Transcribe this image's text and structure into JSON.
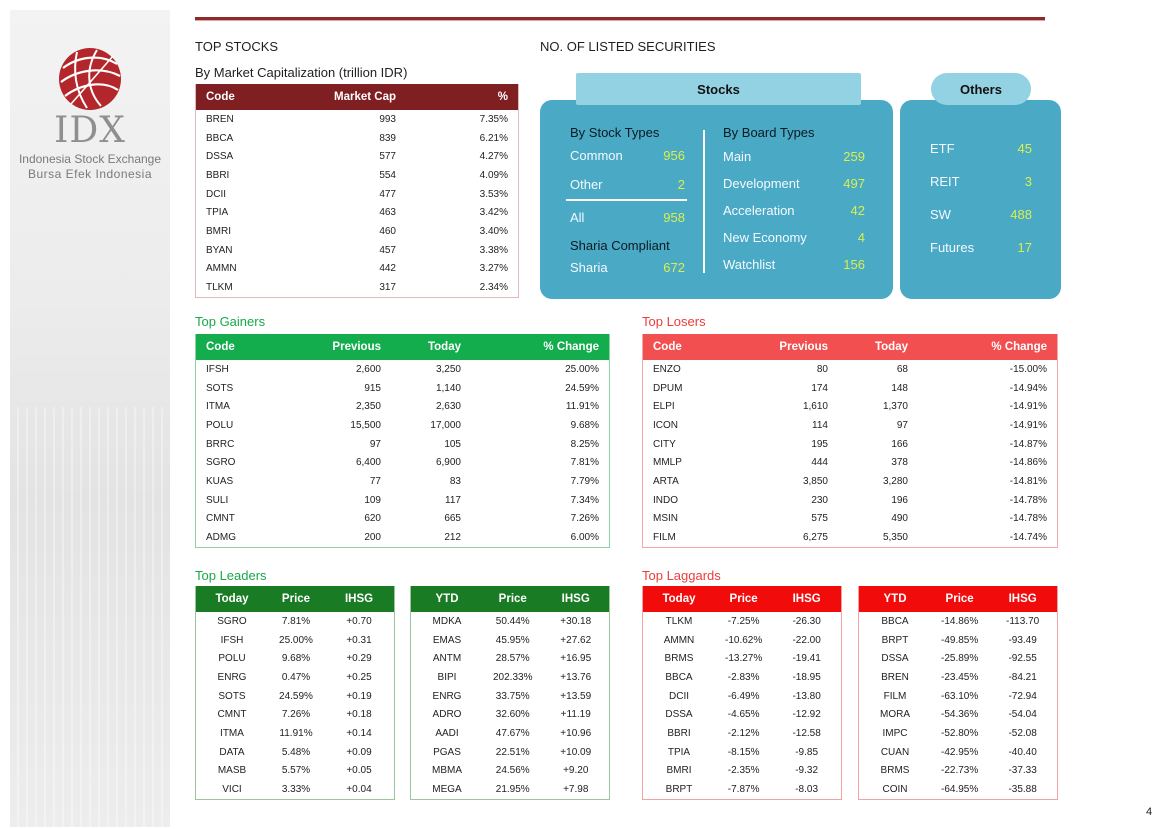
{
  "logo": {
    "brand": "IDX",
    "line1": "Indonesia Stock Exchange",
    "line2": "Bursa Efek Indonesia"
  },
  "top_stocks": {
    "title": "TOP STOCKS",
    "subtitle": "By Market Capitalization (trillion IDR)",
    "headers": [
      "Code",
      "Market Cap",
      "%"
    ],
    "rows": [
      [
        "BREN",
        "993",
        "7.35%"
      ],
      [
        "BBCA",
        "839",
        "6.21%"
      ],
      [
        "DSSA",
        "577",
        "4.27%"
      ],
      [
        "BBRI",
        "554",
        "4.09%"
      ],
      [
        "DCII",
        "477",
        "3.53%"
      ],
      [
        "TPIA",
        "463",
        "3.42%"
      ],
      [
        "BMRI",
        "460",
        "3.40%"
      ],
      [
        "BYAN",
        "457",
        "3.38%"
      ],
      [
        "AMMN",
        "442",
        "3.27%"
      ],
      [
        "TLKM",
        "317",
        "2.34%"
      ]
    ]
  },
  "listed": {
    "title": "NO. OF LISTED SECURITIES",
    "stocks_tab": "Stocks",
    "others_tab": "Others",
    "by_stock_types": "By Stock Types",
    "common_label": "Common",
    "common_value": "956",
    "other_label": "Other",
    "other_value": "2",
    "all_label": "All",
    "all_value": "958",
    "sharia_compliant": "Sharia Compliant",
    "sharia_label": "Sharia",
    "sharia_value": "672",
    "by_board_types": "By Board Types",
    "boards": [
      {
        "label": "Main",
        "value": "259"
      },
      {
        "label": "Development",
        "value": "497"
      },
      {
        "label": "Acceleration",
        "value": "42"
      },
      {
        "label": "New Economy",
        "value": "4"
      },
      {
        "label": "Watchlist",
        "value": "156"
      }
    ],
    "others": [
      {
        "label": "ETF",
        "value": "45"
      },
      {
        "label": "REIT",
        "value": "3"
      },
      {
        "label": "SW",
        "value": "488"
      },
      {
        "label": "Futures",
        "value": "17"
      }
    ]
  },
  "gainers": {
    "title": "Top Gainers",
    "headers": [
      "Code",
      "Previous",
      "Today",
      "% Change"
    ],
    "rows": [
      [
        "IFSH",
        "2,600",
        "3,250",
        "25.00%"
      ],
      [
        "SOTS",
        "915",
        "1,140",
        "24.59%"
      ],
      [
        "ITMA",
        "2,350",
        "2,630",
        "11.91%"
      ],
      [
        "POLU",
        "15,500",
        "17,000",
        "9.68%"
      ],
      [
        "BRRC",
        "97",
        "105",
        "8.25%"
      ],
      [
        "SGRO",
        "6,400",
        "6,900",
        "7.81%"
      ],
      [
        "KUAS",
        "77",
        "83",
        "7.79%"
      ],
      [
        "SULI",
        "109",
        "117",
        "7.34%"
      ],
      [
        "CMNT",
        "620",
        "665",
        "7.26%"
      ],
      [
        "ADMG",
        "200",
        "212",
        "6.00%"
      ]
    ]
  },
  "losers": {
    "title": "Top Losers",
    "headers": [
      "Code",
      "Previous",
      "Today",
      "% Change"
    ],
    "rows": [
      [
        "ENZO",
        "80",
        "68",
        "-15.00%"
      ],
      [
        "DPUM",
        "174",
        "148",
        "-14.94%"
      ],
      [
        "ELPI",
        "1,610",
        "1,370",
        "-14.91%"
      ],
      [
        "ICON",
        "114",
        "97",
        "-14.91%"
      ],
      [
        "CITY",
        "195",
        "166",
        "-14.87%"
      ],
      [
        "MMLP",
        "444",
        "378",
        "-14.86%"
      ],
      [
        "ARTA",
        "3,850",
        "3,280",
        "-14.81%"
      ],
      [
        "INDO",
        "230",
        "196",
        "-14.78%"
      ],
      [
        "MSIN",
        "575",
        "490",
        "-14.78%"
      ],
      [
        "FILM",
        "6,275",
        "5,350",
        "-14.74%"
      ]
    ]
  },
  "leaders": {
    "title": "Top Leaders",
    "today": {
      "headers": [
        "Today",
        "Price",
        "IHSG"
      ],
      "rows": [
        [
          "SGRO",
          "7.81%",
          "+0.70"
        ],
        [
          "IFSH",
          "25.00%",
          "+0.31"
        ],
        [
          "POLU",
          "9.68%",
          "+0.29"
        ],
        [
          "ENRG",
          "0.47%",
          "+0.25"
        ],
        [
          "SOTS",
          "24.59%",
          "+0.19"
        ],
        [
          "CMNT",
          "7.26%",
          "+0.18"
        ],
        [
          "ITMA",
          "11.91%",
          "+0.14"
        ],
        [
          "DATA",
          "5.48%",
          "+0.09"
        ],
        [
          "MASB",
          "5.57%",
          "+0.05"
        ],
        [
          "VICI",
          "3.33%",
          "+0.04"
        ]
      ]
    },
    "ytd": {
      "headers": [
        "YTD",
        "Price",
        "IHSG"
      ],
      "rows": [
        [
          "MDKA",
          "50.44%",
          "+30.18"
        ],
        [
          "EMAS",
          "45.95%",
          "+27.62"
        ],
        [
          "ANTM",
          "28.57%",
          "+16.95"
        ],
        [
          "BIPI",
          "202.33%",
          "+13.76"
        ],
        [
          "ENRG",
          "33.75%",
          "+13.59"
        ],
        [
          "ADRO",
          "32.60%",
          "+11.19"
        ],
        [
          "AADI",
          "47.67%",
          "+10.96"
        ],
        [
          "PGAS",
          "22.51%",
          "+10.09"
        ],
        [
          "MBMA",
          "24.56%",
          "+9.20"
        ],
        [
          "MEGA",
          "21.95%",
          "+7.98"
        ]
      ]
    }
  },
  "laggards": {
    "title": "Top Laggards",
    "today": {
      "headers": [
        "Today",
        "Price",
        "IHSG"
      ],
      "rows": [
        [
          "TLKM",
          "-7.25%",
          "-26.30"
        ],
        [
          "AMMN",
          "-10.62%",
          "-22.00"
        ],
        [
          "BRMS",
          "-13.27%",
          "-19.41"
        ],
        [
          "BBCA",
          "-2.83%",
          "-18.95"
        ],
        [
          "DCII",
          "-6.49%",
          "-13.80"
        ],
        [
          "DSSA",
          "-4.65%",
          "-12.92"
        ],
        [
          "BBRI",
          "-2.12%",
          "-12.58"
        ],
        [
          "TPIA",
          "-8.15%",
          "-9.85"
        ],
        [
          "BMRI",
          "-2.35%",
          "-9.32"
        ],
        [
          "BRPT",
          "-7.87%",
          "-8.03"
        ]
      ]
    },
    "ytd": {
      "headers": [
        "YTD",
        "Price",
        "IHSG"
      ],
      "rows": [
        [
          "BBCA",
          "-14.86%",
          "-113.70"
        ],
        [
          "BRPT",
          "-49.85%",
          "-93.49"
        ],
        [
          "DSSA",
          "-25.89%",
          "-92.55"
        ],
        [
          "BREN",
          "-23.45%",
          "-84.21"
        ],
        [
          "FILM",
          "-63.10%",
          "-72.94"
        ],
        [
          "MORA",
          "-54.36%",
          "-54.04"
        ],
        [
          "IMPC",
          "-52.80%",
          "-52.08"
        ],
        [
          "CUAN",
          "-42.95%",
          "-40.40"
        ],
        [
          "BRMS",
          "-22.73%",
          "-37.33"
        ],
        [
          "COIN",
          "-64.95%",
          "-35.88"
        ]
      ]
    }
  },
  "page_number": "4",
  "colors": {
    "brand_red": "#7f1f22",
    "gainers_green": "#14ad4d",
    "losers_red": "#f25050",
    "leaders_green": "#197c25",
    "laggards_red": "#f20b0b",
    "panel_blue": "#4aa9c5",
    "value_yellow": "#d8ef4f"
  }
}
